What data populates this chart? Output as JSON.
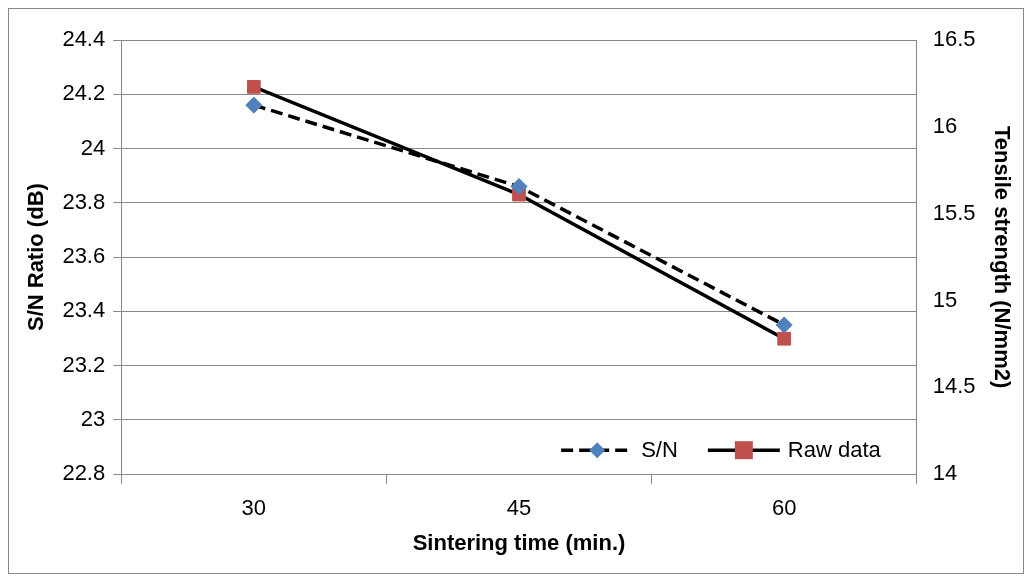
{
  "chart_data": {
    "type": "line",
    "xlabel": "Sintering time (min.)",
    "ylabel": "S/N Ratio (dB)",
    "y2label": "Tensile strength (N/mm2)",
    "categories": [
      "30",
      "45",
      "60"
    ],
    "series": [
      {
        "name": "S/N",
        "color": "#4f81bd",
        "values": [
          24.16,
          23.86,
          23.35
        ],
        "marker": "diamond",
        "line_style": "dashed"
      },
      {
        "name": "Raw data",
        "color": "#c0504d",
        "values": [
          16.23,
          15.61,
          14.78
        ],
        "marker": "square",
        "line_style": "solid",
        "axis": "y2"
      }
    ],
    "ylim": [
      22.8,
      24.4
    ],
    "yticks": [
      22.8,
      23,
      23.2,
      23.4,
      23.6,
      23.8,
      24,
      24.2,
      24.4
    ],
    "y2lim": [
      14,
      16.5
    ],
    "y2ticks": [
      14,
      14.5,
      15,
      15.5,
      16,
      16.5
    ],
    "grid": "y",
    "legend": "bottom right"
  }
}
